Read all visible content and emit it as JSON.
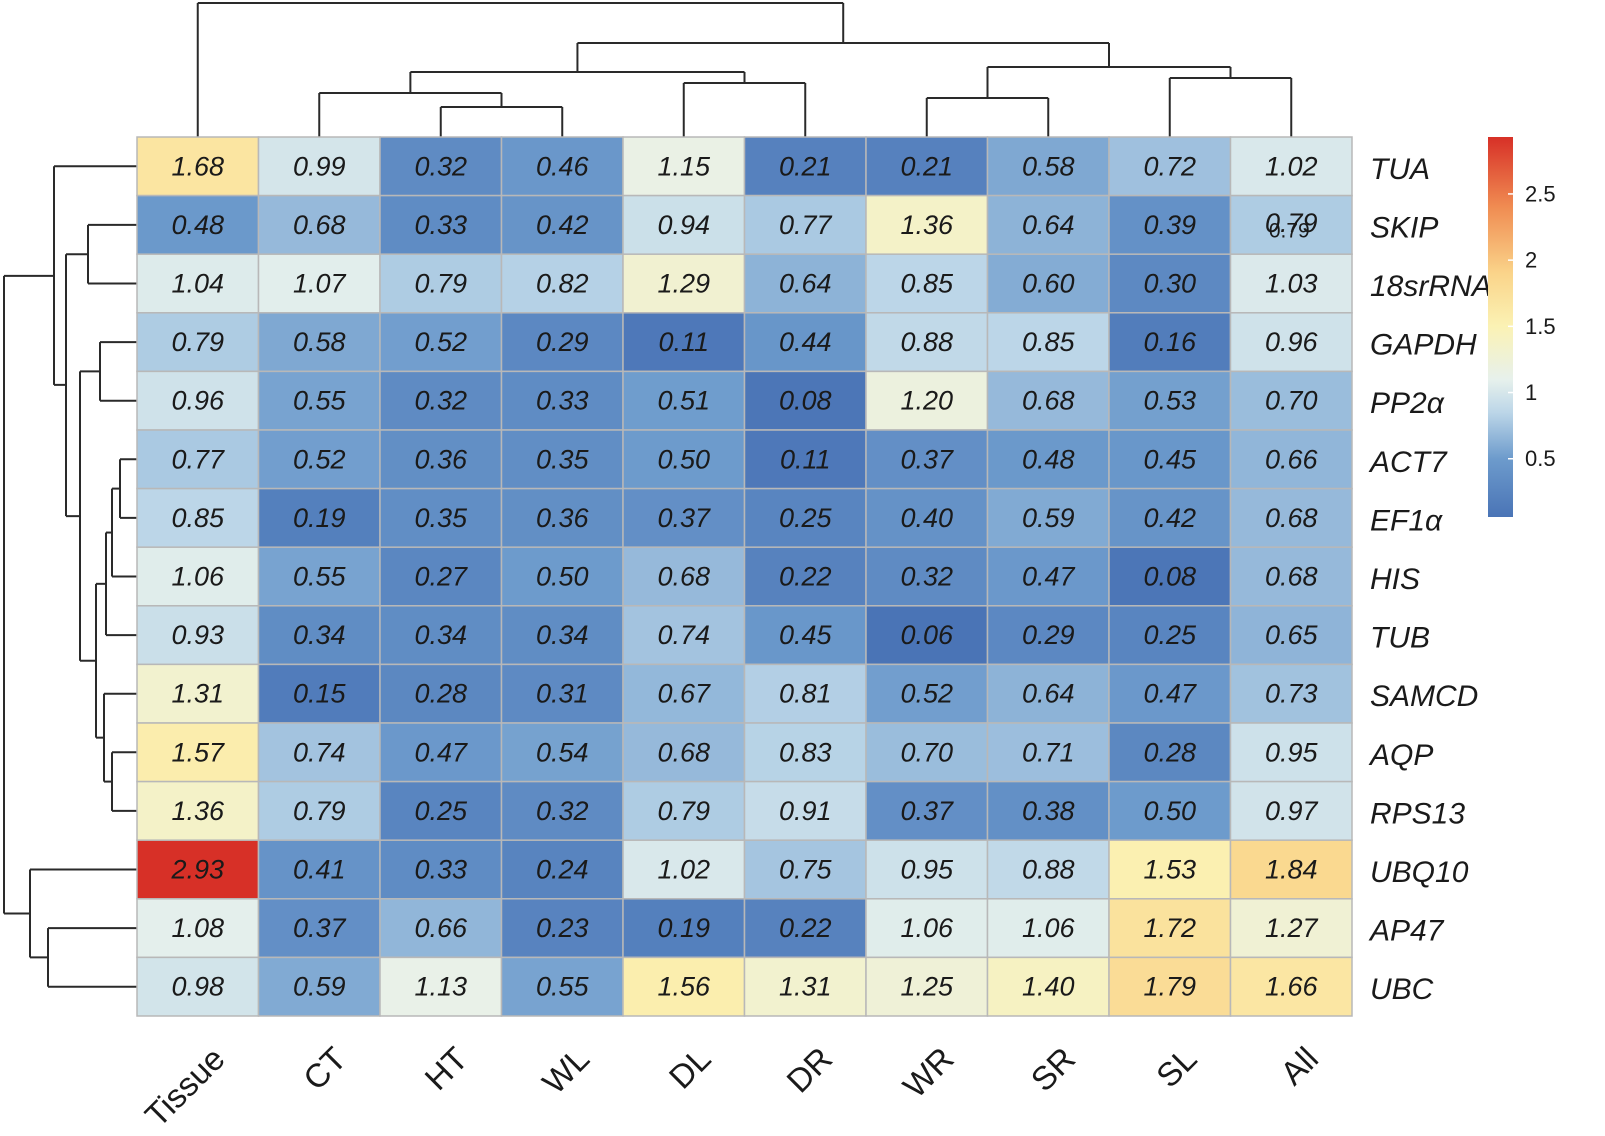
{
  "chart_data": {
    "type": "heatmap",
    "title": "",
    "rows": [
      "TUA",
      "SKIP",
      "18srRNA",
      "GAPDH",
      "PP2α",
      "ACT7",
      "EF1α",
      "HIS",
      "TUB",
      "SAMCD",
      "AQP",
      "RPS13",
      "UBQ10",
      "AP47",
      "UBC"
    ],
    "columns": [
      "Tissue",
      "CT",
      "HT",
      "WL",
      "DL",
      "DR",
      "WR",
      "SR",
      "SL",
      "All"
    ],
    "values": [
      [
        1.68,
        0.99,
        0.32,
        0.46,
        1.15,
        0.21,
        0.21,
        0.58,
        0.72,
        1.02
      ],
      [
        0.48,
        0.68,
        0.33,
        0.42,
        0.94,
        0.77,
        1.36,
        0.64,
        0.39,
        0.79
      ],
      [
        1.04,
        1.07,
        0.79,
        0.82,
        1.29,
        0.64,
        0.85,
        0.6,
        0.3,
        1.03
      ],
      [
        0.79,
        0.58,
        0.52,
        0.29,
        0.11,
        0.44,
        0.88,
        0.85,
        0.16,
        0.96
      ],
      [
        0.96,
        0.55,
        0.32,
        0.33,
        0.51,
        0.08,
        1.2,
        0.68,
        0.53,
        0.7
      ],
      [
        0.77,
        0.52,
        0.36,
        0.35,
        0.5,
        0.11,
        0.37,
        0.48,
        0.45,
        0.66
      ],
      [
        0.85,
        0.19,
        0.35,
        0.36,
        0.37,
        0.25,
        0.4,
        0.59,
        0.42,
        0.68
      ],
      [
        1.06,
        0.55,
        0.27,
        0.5,
        0.68,
        0.22,
        0.32,
        0.47,
        0.08,
        0.68
      ],
      [
        0.93,
        0.34,
        0.34,
        0.34,
        0.74,
        0.45,
        0.06,
        0.29,
        0.25,
        0.65
      ],
      [
        1.31,
        0.15,
        0.28,
        0.31,
        0.67,
        0.81,
        0.52,
        0.64,
        0.47,
        0.73
      ],
      [
        1.57,
        0.74,
        0.47,
        0.54,
        0.68,
        0.83,
        0.7,
        0.71,
        0.28,
        0.95
      ],
      [
        1.36,
        0.79,
        0.25,
        0.32,
        0.79,
        0.91,
        0.37,
        0.38,
        0.5,
        0.97
      ],
      [
        2.93,
        0.41,
        0.33,
        0.24,
        1.02,
        0.75,
        0.95,
        0.88,
        1.53,
        1.84
      ],
      [
        1.08,
        0.37,
        0.66,
        0.23,
        0.19,
        0.22,
        1.06,
        1.06,
        1.72,
        1.27
      ],
      [
        0.98,
        0.59,
        1.13,
        0.55,
        1.56,
        1.31,
        1.25,
        1.4,
        1.79,
        1.66
      ]
    ],
    "value_labels": [
      [
        "1.68",
        "0.99",
        "0.32",
        "0.46",
        "1.15",
        "0.21",
        "0.21",
        "0.58",
        "0.72",
        "1.02"
      ],
      [
        "0.48",
        "0.68",
        "0.33",
        "0.42",
        "0.94",
        "0.77",
        "1.36",
        "0.64",
        "0.39",
        "0.79"
      ],
      [
        "1.04",
        "1.07",
        "0.79",
        "0.82",
        "1.29",
        "0.64",
        "0.85",
        "0.60",
        "0.30",
        "1.03"
      ],
      [
        "0.79",
        "0.58",
        "0.52",
        "0.29",
        "0.11",
        "0.44",
        "0.88",
        "0.85",
        "0.16",
        "0.96"
      ],
      [
        "0.96",
        "0.55",
        "0.32",
        "0.33",
        "0.51",
        "0.08",
        "1.20",
        "0.68",
        "0.53",
        "0.70"
      ],
      [
        "0.77",
        "0.52",
        "0.36",
        "0.35",
        "0.50",
        "0.11",
        "0.37",
        "0.48",
        "0.45",
        "0.66"
      ],
      [
        "0.85",
        "0.19",
        "0.35",
        "0.36",
        "0.37",
        "0.25",
        "0.40",
        "0.59",
        "0.42",
        "0.68"
      ],
      [
        "1.06",
        "0.55",
        "0.27",
        "0.50",
        "0.68",
        "0.22",
        "0.32",
        "0.47",
        "0.08",
        "0.68"
      ],
      [
        "0.93",
        "0.34",
        "0.34",
        "0.34",
        "0.74",
        "0.45",
        "0.06",
        "0.29",
        "0.25",
        "0.65"
      ],
      [
        "1.31",
        "0.15",
        "0.28",
        "0.31",
        "0.67",
        "0.81",
        "0.52",
        "0.64",
        "0.47",
        "0.73"
      ],
      [
        "1.57",
        "0.74",
        "0.47",
        "0.54",
        "0.68",
        "0.83",
        "0.70",
        "0.71",
        "0.28",
        "0.95"
      ],
      [
        "1.36",
        "0.79",
        "0.25",
        "0.32",
        "0.79",
        "0.91",
        "0.37",
        "0.38",
        "0.50",
        "0.97"
      ],
      [
        "2.93",
        "0.41",
        "0.33",
        "0.24",
        "1.02",
        "0.75",
        "0.95",
        "0.88",
        "1.53",
        "1.84"
      ],
      [
        "1.08",
        "0.37",
        "0.66",
        "0.23",
        "0.19",
        "0.22",
        "1.06",
        "1.06",
        "1.72",
        "1.27"
      ],
      [
        "0.98",
        "0.59",
        "1.13",
        "0.55",
        "1.56",
        "1.31",
        "1.25",
        "1.40",
        "1.79",
        "1.66"
      ]
    ],
    "overlap_annotation": {
      "row": 1,
      "col": 9,
      "text": "0.79"
    },
    "color_scale": {
      "min": 0.06,
      "max": 2.93,
      "stops": [
        {
          "value": 0.06,
          "color": "#4a74b6"
        },
        {
          "value": 0.5,
          "color": "#6d9bcc"
        },
        {
          "value": 0.85,
          "color": "#bcd6e8"
        },
        {
          "value": 1.1,
          "color": "#e7f1ec"
        },
        {
          "value": 1.5,
          "color": "#fbf2b4"
        },
        {
          "value": 1.9,
          "color": "#fad48a"
        },
        {
          "value": 2.4,
          "color": "#f08c52"
        },
        {
          "value": 2.93,
          "color": "#d73027"
        }
      ]
    },
    "legend": {
      "ticks": [
        "2.5",
        "2",
        "1.5",
        "1",
        "0.5"
      ],
      "tick_values": [
        2.5,
        2.0,
        1.5,
        1.0,
        0.5
      ],
      "placement": "right"
    },
    "row_dendrogram": true,
    "column_dendrogram": true
  }
}
